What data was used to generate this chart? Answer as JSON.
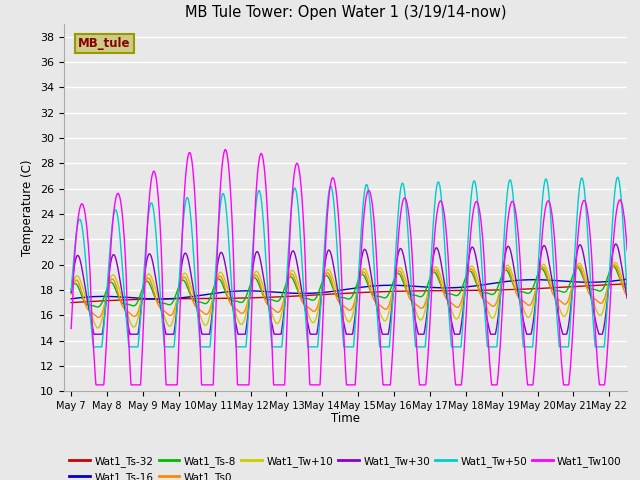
{
  "title": "MB Tule Tower: Open Water 1 (3/19/14-now)",
  "xlabel": "Time",
  "ylabel": "Temperature (C)",
  "ylim": [
    10,
    39
  ],
  "yticks": [
    10,
    12,
    14,
    16,
    18,
    20,
    22,
    24,
    26,
    28,
    30,
    32,
    34,
    36,
    38
  ],
  "background_color": "#e8e8e8",
  "grid_color": "#ffffff",
  "series": [
    {
      "label": "Wat1_Ts-32",
      "color": "#cc0000"
    },
    {
      "label": "Wat1_Ts-16",
      "color": "#0000cc"
    },
    {
      "label": "Wat1_Ts-8",
      "color": "#00bb00"
    },
    {
      "label": "Wat1_Ts0",
      "color": "#ff8800"
    },
    {
      "label": "Wat1_Tw+10",
      "color": "#cccc00"
    },
    {
      "label": "Wat1_Tw+30",
      "color": "#8800cc"
    },
    {
      "label": "Wat1_Tw+50",
      "color": "#00cccc"
    },
    {
      "label": "Wat1_Tw100",
      "color": "#ff00ff"
    }
  ],
  "legend_box_color": "#cccc88",
  "legend_box_text": "MB_tule",
  "legend_box_text_color": "#880000"
}
